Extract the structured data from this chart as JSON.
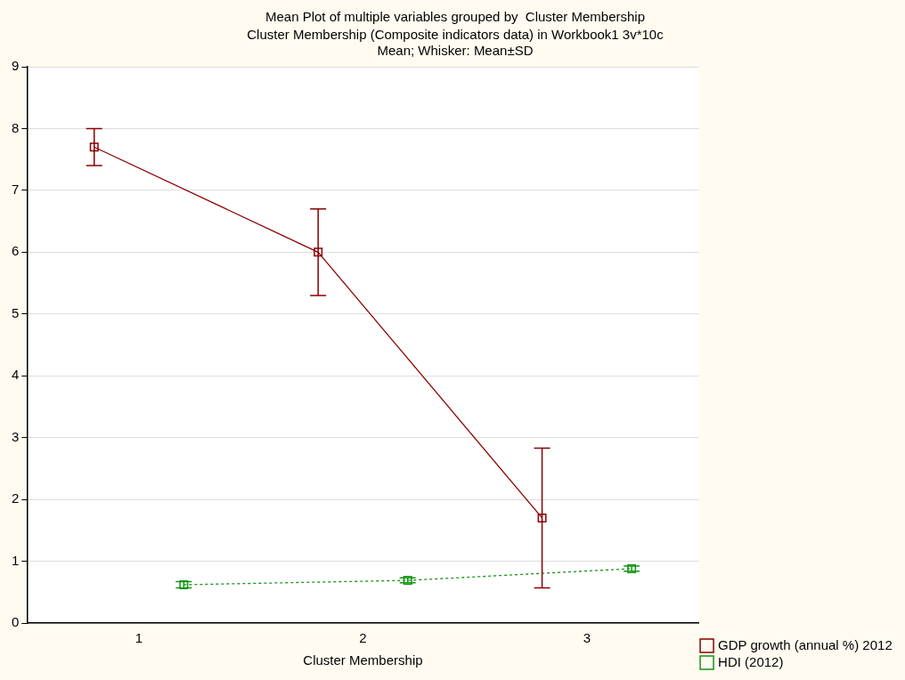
{
  "chart_data": {
    "type": "line",
    "title": "Mean Plot of multiple variables grouped by  Cluster Membership",
    "subtitle": "Cluster Membership (Composite indicators data) in Workbook1 3v*10c",
    "annotations": [
      "Mean; Whisker: Mean±SD"
    ],
    "xlabel": "Cluster Membership",
    "xlim": [
      0.5,
      3.5
    ],
    "xticks": [
      1,
      2,
      3
    ],
    "ylim": [
      0,
      9
    ],
    "yticks": [
      0,
      1,
      2,
      3,
      4,
      5,
      6,
      7,
      8,
      9
    ],
    "grid": "y",
    "legend": "bottom right",
    "marker": "square",
    "series": [
      {
        "name": "GDP growth (annual %) 2012",
        "color": "#8b0000",
        "x": [
          0.8,
          1.8,
          2.8
        ],
        "values": [
          7.7,
          6.0,
          1.7
        ],
        "errors": [
          0.3,
          0.7,
          1.13
        ],
        "line_style": "solid"
      },
      {
        "name": "HDI (2012)",
        "color": "#149414",
        "x": [
          1.2,
          2.2,
          3.2
        ],
        "values": [
          0.62,
          0.69,
          0.88
        ],
        "errors": [
          0.05,
          0.04,
          0.04
        ],
        "line_style": "dotted"
      }
    ]
  }
}
